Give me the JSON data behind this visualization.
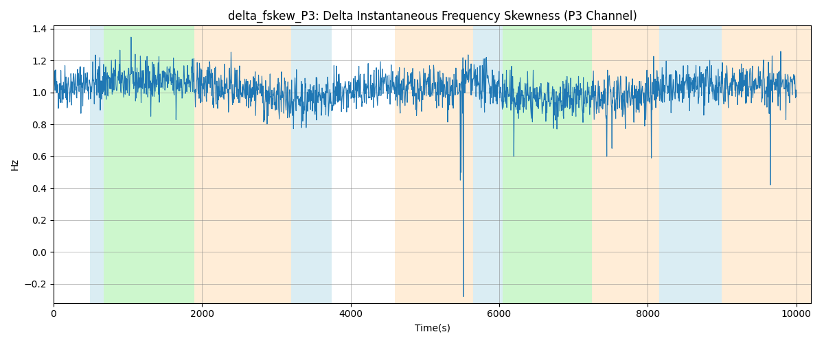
{
  "title": "delta_fskew_P3: Delta Instantaneous Frequency Skewness (P3 Channel)",
  "xlabel": "Time(s)",
  "ylabel": "Hz",
  "xlim": [
    0,
    10200
  ],
  "ylim": [
    -0.32,
    1.42
  ],
  "line_color": "#1f77b4",
  "line_width": 0.8,
  "background_color": "#ffffff",
  "grid": true,
  "figsize": [
    12,
    5
  ],
  "dpi": 100,
  "bands": [
    {
      "xmin": 490,
      "xmax": 680,
      "color": "#add8e6",
      "alpha": 0.45
    },
    {
      "xmin": 680,
      "xmax": 1900,
      "color": "#90ee90",
      "alpha": 0.45
    },
    {
      "xmin": 1900,
      "xmax": 3200,
      "color": "#ffd8a8",
      "alpha": 0.45
    },
    {
      "xmin": 3200,
      "xmax": 3750,
      "color": "#add8e6",
      "alpha": 0.45
    },
    {
      "xmin": 4600,
      "xmax": 5650,
      "color": "#ffd8a8",
      "alpha": 0.45
    },
    {
      "xmin": 5650,
      "xmax": 6050,
      "color": "#add8e6",
      "alpha": 0.45
    },
    {
      "xmin": 6050,
      "xmax": 7250,
      "color": "#90ee90",
      "alpha": 0.45
    },
    {
      "xmin": 7250,
      "xmax": 8150,
      "color": "#ffd8a8",
      "alpha": 0.45
    },
    {
      "xmin": 8150,
      "xmax": 9000,
      "color": "#add8e6",
      "alpha": 0.45
    },
    {
      "xmin": 9000,
      "xmax": 10200,
      "color": "#ffd8a8",
      "alpha": 0.45
    }
  ],
  "seed": 42,
  "n_points": 2000,
  "signal_mean": 1.05,
  "signal_std": 0.07,
  "noise_std": 0.05
}
